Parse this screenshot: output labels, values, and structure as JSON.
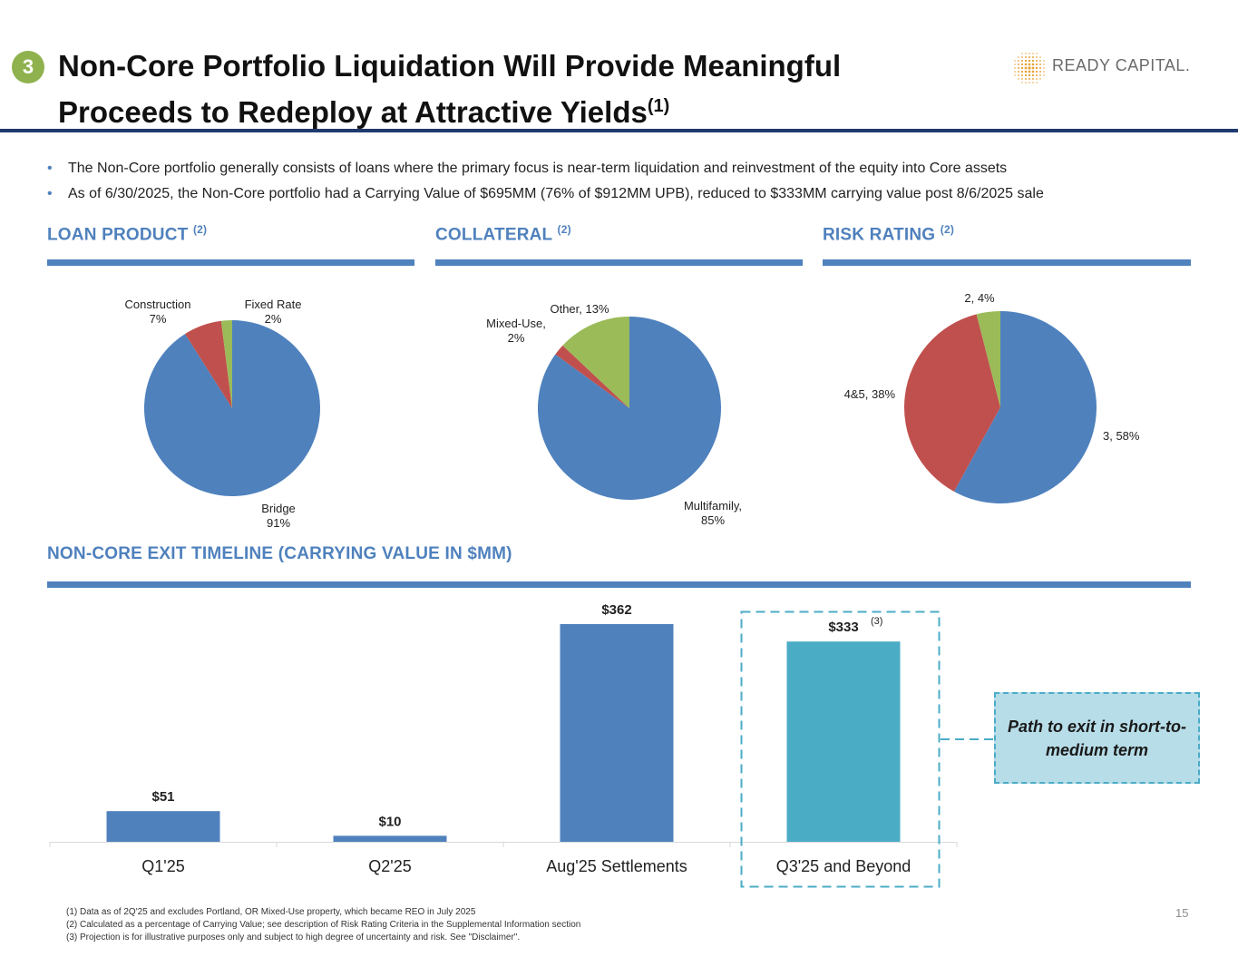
{
  "badge": "3",
  "title": {
    "line1": "Non-Core Portfolio Liquidation Will Provide Meaningful",
    "line2": "Proceeds to Redeploy at Attractive Yields",
    "sup": "(1)"
  },
  "logo": {
    "text": "READY CAPITAL.",
    "color": "#e8a33a"
  },
  "bullets": [
    "The Non-Core portfolio generally consists of loans where the primary focus is near-term liquidation and reinvestment of the equity into Core assets",
    "As of 6/30/2025, the Non-Core portfolio had a Carrying Value of $695MM (76% of $912MM UPB), reduced to $333MM carrying value post 8/6/2025 sale"
  ],
  "sections": {
    "loan_product": {
      "title": "LOAN PRODUCT",
      "sup": "(2)"
    },
    "collateral": {
      "title": "COLLATERAL",
      "sup": "(2)"
    },
    "risk_rating": {
      "title": "RISK RATING",
      "sup": "(2)"
    },
    "timeline": {
      "title": "NON-CORE EXIT TIMELINE (CARRYING VALUE IN $MM)"
    }
  },
  "colors": {
    "accent": "#4f81bd",
    "red": "#c0504d",
    "green": "#9bbb59",
    "teal": "#4bacc6",
    "navy": "#1e3a6e"
  },
  "chart_data": [
    {
      "type": "pie",
      "title": "LOAN PRODUCT",
      "slices": [
        {
          "name": "Bridge",
          "value": 91,
          "label_lines": [
            "Bridge",
            "91%"
          ]
        },
        {
          "name": "Construction",
          "value": 7,
          "label_lines": [
            "Construction",
            "7%"
          ]
        },
        {
          "name": "Fixed Rate",
          "value": 2,
          "label_lines": [
            "Fixed Rate",
            "2%"
          ]
        }
      ]
    },
    {
      "type": "pie",
      "title": "COLLATERAL",
      "slices": [
        {
          "name": "Multifamily",
          "value": 85,
          "label_lines": [
            "Multifamily,",
            "85%"
          ]
        },
        {
          "name": "Mixed-Use",
          "value": 2,
          "label_lines": [
            "Mixed-Use,",
            "2%"
          ]
        },
        {
          "name": "Other",
          "value": 13,
          "label_lines": [
            "Other, 13%"
          ]
        }
      ]
    },
    {
      "type": "pie",
      "title": "RISK RATING",
      "slices": [
        {
          "name": "3",
          "value": 58,
          "label_lines": [
            "3, 58%"
          ]
        },
        {
          "name": "4&5",
          "value": 38,
          "label_lines": [
            "4&5, 38%"
          ]
        },
        {
          "name": "2",
          "value": 4,
          "label_lines": [
            "2, 4%"
          ]
        }
      ]
    },
    {
      "type": "bar",
      "title": "NON-CORE EXIT TIMELINE (CARRYING VALUE IN $MM)",
      "categories": [
        "Q1'25",
        "Q2'25",
        "Aug'25 Settlements",
        "Q3'25 and Beyond"
      ],
      "values": [
        51,
        10,
        362,
        333
      ],
      "value_labels": [
        "$51",
        "$10",
        "$362",
        "$333"
      ],
      "annotations": [
        "",
        "",
        "",
        "(3)"
      ],
      "ylim": [
        0,
        380
      ]
    }
  ],
  "callout": "Path to exit in short-to-medium term",
  "footnotes": [
    "(1)    Data as of 2Q'25 and excludes Portland, OR Mixed-Use property, which became REO in July 2025",
    "(2)    Calculated as a percentage of Carrying Value; see description of Risk Rating Criteria in the Supplemental Information section",
    "(3)    Projection is for illustrative purposes only and subject to high degree of uncertainty and risk. See \"Disclaimer\"."
  ],
  "page_number": "15"
}
